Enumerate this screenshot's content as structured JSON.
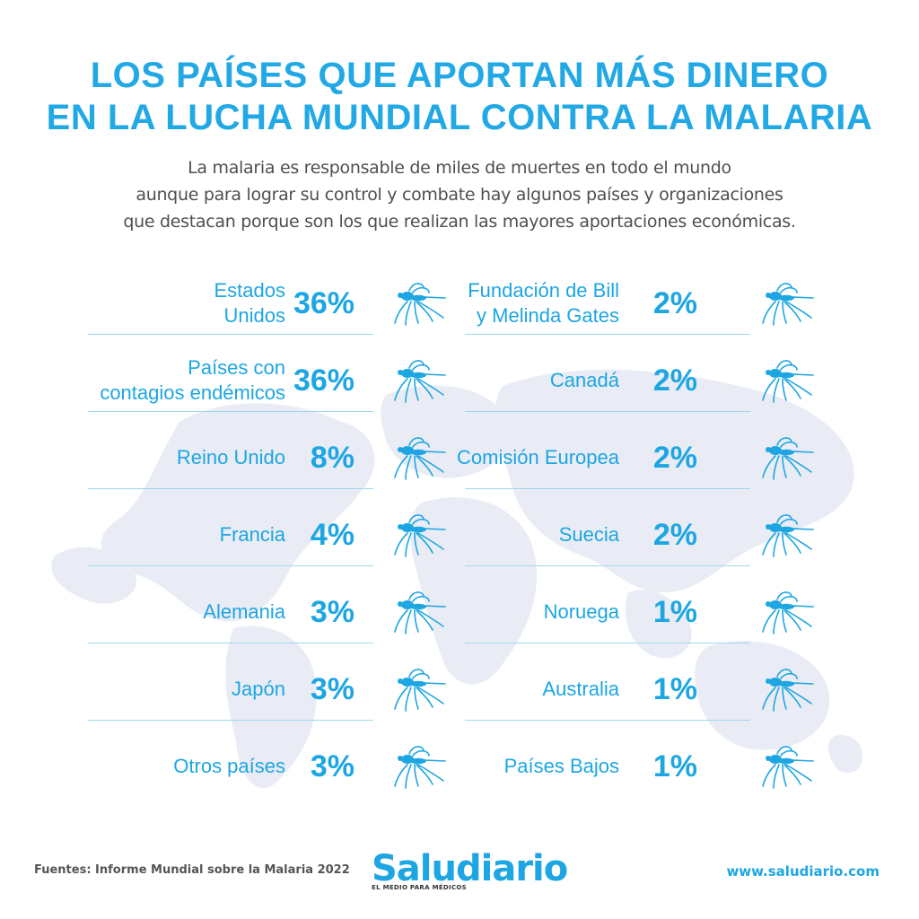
{
  "title_line1": "LOS PAÍSES QUE APORTAN MÁS DINERO",
  "title_line2": "EN LA LUCHA MUNDIAL CONTRA LA MALARIA",
  "subtitle": "La malaria es responsable de miles de muertes en todo el mundo\naunque para lograr su control y combate hay algunos países y organizaciones\nque destacan porque son los que realizan las mayores aportaciones económicas.",
  "colors": {
    "accent": "#1da6e2",
    "title": "#22a9e5",
    "separator": "#9fd6f0",
    "map": "#e9ecf5"
  },
  "icon": "mosquito-icon",
  "chart_data": {
    "type": "table",
    "unit": "%",
    "columns": [
      {
        "rows": [
          {
            "label": "Estados\nUnidos",
            "value": 36
          },
          {
            "label": "Países con\ncontagios endémicos",
            "value": 36
          },
          {
            "label": "Reino Unido",
            "value": 8
          },
          {
            "label": "Francia",
            "value": 4
          },
          {
            "label": "Alemania",
            "value": 3
          },
          {
            "label": "Japón",
            "value": 3
          },
          {
            "label": "Otros países",
            "value": 3
          }
        ]
      },
      {
        "rows": [
          {
            "label": "Fundación de Bill\ny Melinda Gates",
            "value": 2
          },
          {
            "label": "Canadá",
            "value": 2
          },
          {
            "label": "Comisión Europea",
            "value": 2
          },
          {
            "label": "Suecia",
            "value": 2
          },
          {
            "label": "Noruega",
            "value": 1
          },
          {
            "label": "Australia",
            "value": 1
          },
          {
            "label": "Países Bajos",
            "value": 1
          }
        ]
      }
    ]
  },
  "footer": {
    "source": "Fuentes: Informe Mundial sobre la Malaria 2022",
    "brand": "Saludiario",
    "tagline": "EL MEDIO PARA MÉDICOS",
    "url": "www.saludiario.com"
  }
}
